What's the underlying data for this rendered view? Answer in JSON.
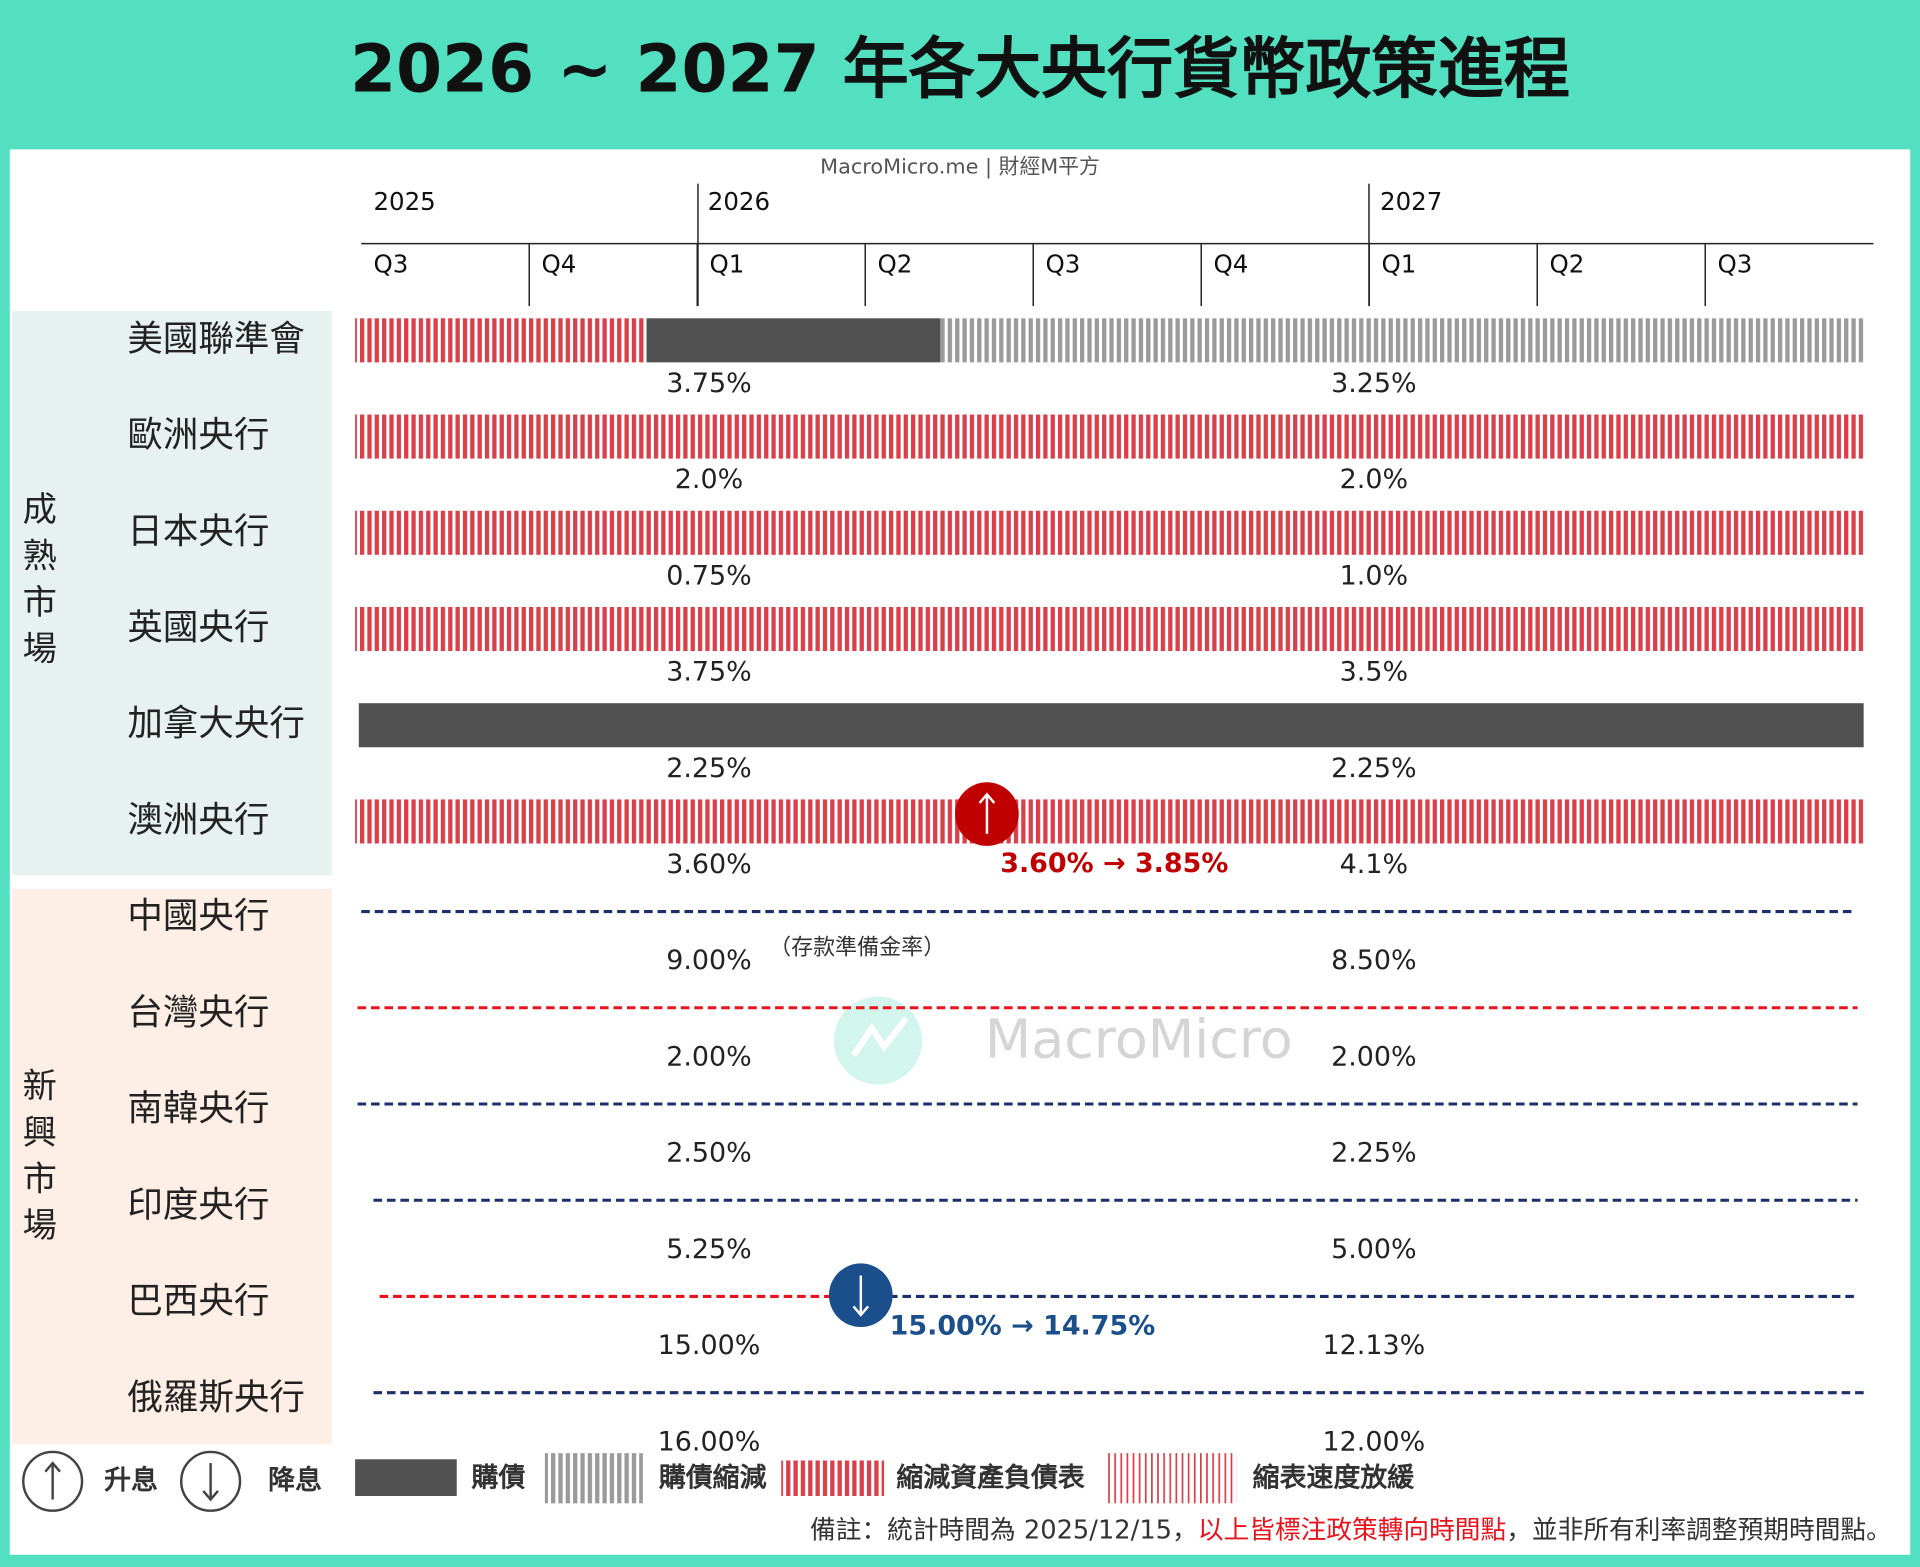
{
  "header": {
    "title": "2026 ~ 2027 年各大央行貨幣政策進程"
  },
  "source": "MacroMicro.me | 財經M平方",
  "watermark": "MacroMicro",
  "timeline": {
    "years": [
      "2025",
      "2026",
      "2027"
    ],
    "quarters": [
      "Q3",
      "Q4",
      "Q1",
      "Q2",
      "Q3",
      "Q4",
      "Q1",
      "Q2",
      "Q3"
    ]
  },
  "groups": [
    {
      "label": "成熟市場"
    },
    {
      "label": "新興市場"
    }
  ],
  "rows": [
    {
      "name": "美國聯準會",
      "rates": [
        "3.75%",
        "3.25%"
      ]
    },
    {
      "name": "歐洲央行",
      "rates": [
        "2.0%",
        "2.0%"
      ]
    },
    {
      "name": "日本央行",
      "rates": [
        "0.75%",
        "1.0%"
      ]
    },
    {
      "name": "英國央行",
      "rates": [
        "3.75%",
        "3.5%"
      ]
    },
    {
      "name": "加拿大央行",
      "rates": [
        "2.25%",
        "2.25%"
      ]
    },
    {
      "name": "澳洲央行",
      "rates": [
        "3.60%",
        "4.1%"
      ],
      "change": "3.60% → 3.85%"
    },
    {
      "name": "中國央行",
      "rates": [
        "9.00%",
        "8.50%"
      ],
      "note": "（存款準備金率）"
    },
    {
      "name": "台灣央行",
      "rates": [
        "2.00%",
        "2.00%"
      ]
    },
    {
      "name": "南韓央行",
      "rates": [
        "2.50%",
        "2.25%"
      ]
    },
    {
      "name": "印度央行",
      "rates": [
        "5.25%",
        "5.00%"
      ]
    },
    {
      "name": "巴西央行",
      "rates": [
        "15.00%",
        "12.13%"
      ],
      "change": "15.00% → 14.75%"
    },
    {
      "name": "俄羅斯央行",
      "rates": [
        "16.00%",
        "12.00%"
      ]
    }
  ],
  "legend": [
    {
      "label": "升息"
    },
    {
      "label": "降息"
    },
    {
      "label": "購債"
    },
    {
      "label": "購債縮減"
    },
    {
      "label": "縮減資產負債表"
    },
    {
      "label": "縮表速度放緩"
    }
  ],
  "footnote": {
    "parts": [
      "備註：統計時間為 2025/12/15，",
      "以上皆標注政策轉向時間點",
      "，並非所有利率調整預期時間點。"
    ]
  }
}
